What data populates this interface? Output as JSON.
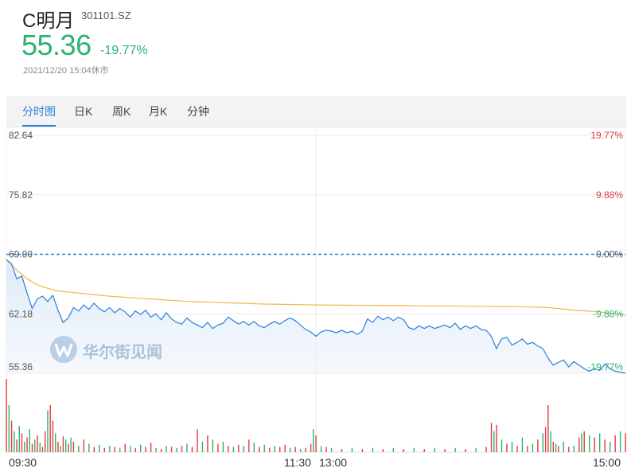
{
  "header": {
    "name": "C明月",
    "code": "301101.SZ",
    "price": "55.36",
    "change": "-19.77%",
    "timestamp": "2021/12/20 15:04休市"
  },
  "tabs": [
    {
      "label": "分时图",
      "active": true
    },
    {
      "label": "日K",
      "active": false
    },
    {
      "label": "周K",
      "active": false
    },
    {
      "label": "月K",
      "active": false
    },
    {
      "label": "分钟",
      "active": false
    }
  ],
  "watermark": "华尔街见闻",
  "colors": {
    "up": "#e23b3b",
    "down": "#2bb371",
    "price_line": "#2a7fdb",
    "avg_line": "#f2b84b",
    "prev_close_line": "#2a7fdb"
  },
  "chart_data": {
    "type": "line",
    "y_labels_left": [
      "82.64",
      "75.82",
      "69.00",
      "62.18",
      "55.36"
    ],
    "y_labels_right": [
      "19.77%",
      "9.88%",
      "0.00%",
      "-9.88%",
      "-19.77%"
    ],
    "x_labels": [
      "09:30",
      "11:30",
      "13:00",
      "15:00"
    ],
    "ylim": [
      55.36,
      82.64
    ],
    "prev_close": 69.0,
    "x_unit": "minutes since 09:30 (240 total)",
    "series": [
      {
        "name": "price",
        "points": [
          [
            0,
            68.4
          ],
          [
            2,
            67.9
          ],
          [
            4,
            66.2
          ],
          [
            6,
            66.5
          ],
          [
            8,
            64.6
          ],
          [
            10,
            62.8
          ],
          [
            12,
            63.9
          ],
          [
            14,
            64.2
          ],
          [
            16,
            63.6
          ],
          [
            18,
            64.3
          ],
          [
            20,
            62.6
          ],
          [
            22,
            61.2
          ],
          [
            24,
            61.7
          ],
          [
            26,
            62.9
          ],
          [
            28,
            62.5
          ],
          [
            30,
            63.2
          ],
          [
            32,
            62.7
          ],
          [
            34,
            63.4
          ],
          [
            36,
            62.8
          ],
          [
            38,
            62.4
          ],
          [
            40,
            62.9
          ],
          [
            42,
            62.3
          ],
          [
            44,
            62.8
          ],
          [
            46,
            62.4
          ],
          [
            48,
            61.8
          ],
          [
            50,
            62.5
          ],
          [
            52,
            62.1
          ],
          [
            54,
            62.6
          ],
          [
            56,
            61.8
          ],
          [
            58,
            62.2
          ],
          [
            60,
            61.5
          ],
          [
            62,
            62.3
          ],
          [
            64,
            61.6
          ],
          [
            66,
            61.2
          ],
          [
            68,
            61.0
          ],
          [
            70,
            61.7
          ],
          [
            72,
            61.2
          ],
          [
            74,
            60.9
          ],
          [
            76,
            60.6
          ],
          [
            78,
            61.2
          ],
          [
            80,
            60.5
          ],
          [
            82,
            60.9
          ],
          [
            84,
            61.1
          ],
          [
            86,
            61.8
          ],
          [
            88,
            61.4
          ],
          [
            90,
            61.0
          ],
          [
            92,
            61.3
          ],
          [
            94,
            60.9
          ],
          [
            96,
            61.3
          ],
          [
            98,
            60.8
          ],
          [
            100,
            60.6
          ],
          [
            102,
            61.0
          ],
          [
            104,
            61.3
          ],
          [
            106,
            61.0
          ],
          [
            108,
            61.4
          ],
          [
            110,
            61.7
          ],
          [
            112,
            61.4
          ],
          [
            114,
            60.9
          ],
          [
            116,
            60.4
          ],
          [
            118,
            60.1
          ],
          [
            120,
            59.6
          ],
          [
            122,
            60.1
          ],
          [
            124,
            60.3
          ],
          [
            126,
            60.2
          ],
          [
            128,
            60.0
          ],
          [
            130,
            60.3
          ],
          [
            132,
            60.0
          ],
          [
            134,
            60.2
          ],
          [
            136,
            59.8
          ],
          [
            138,
            60.2
          ],
          [
            140,
            61.6
          ],
          [
            142,
            61.2
          ],
          [
            144,
            61.9
          ],
          [
            146,
            61.5
          ],
          [
            148,
            61.8
          ],
          [
            150,
            61.4
          ],
          [
            152,
            61.8
          ],
          [
            154,
            61.5
          ],
          [
            156,
            60.6
          ],
          [
            158,
            60.4
          ],
          [
            160,
            60.8
          ],
          [
            162,
            60.5
          ],
          [
            164,
            60.8
          ],
          [
            166,
            60.5
          ],
          [
            168,
            60.7
          ],
          [
            170,
            60.9
          ],
          [
            172,
            60.6
          ],
          [
            174,
            61.1
          ],
          [
            176,
            60.4
          ],
          [
            178,
            60.8
          ],
          [
            180,
            60.5
          ],
          [
            182,
            60.8
          ],
          [
            184,
            60.4
          ],
          [
            186,
            60.3
          ],
          [
            188,
            59.6
          ],
          [
            190,
            58.2
          ],
          [
            192,
            59.3
          ],
          [
            194,
            59.5
          ],
          [
            196,
            58.6
          ],
          [
            198,
            58.9
          ],
          [
            200,
            59.3
          ],
          [
            202,
            58.7
          ],
          [
            204,
            58.9
          ],
          [
            206,
            58.5
          ],
          [
            208,
            58.2
          ],
          [
            210,
            57.1
          ],
          [
            212,
            56.3
          ],
          [
            214,
            56.6
          ],
          [
            216,
            56.9
          ],
          [
            218,
            56.1
          ],
          [
            220,
            56.7
          ],
          [
            222,
            56.3
          ],
          [
            224,
            55.9
          ],
          [
            226,
            55.6
          ],
          [
            228,
            55.9
          ],
          [
            230,
            55.7
          ],
          [
            232,
            56.4
          ],
          [
            234,
            55.9
          ],
          [
            236,
            55.6
          ],
          [
            238,
            55.5
          ],
          [
            240,
            55.4
          ]
        ]
      },
      {
        "name": "avg",
        "points": [
          [
            0,
            68.4
          ],
          [
            4,
            67.2
          ],
          [
            8,
            66.2
          ],
          [
            12,
            65.5
          ],
          [
            16,
            65.1
          ],
          [
            20,
            64.8
          ],
          [
            30,
            64.5
          ],
          [
            40,
            64.2
          ],
          [
            50,
            64.0
          ],
          [
            60,
            63.8
          ],
          [
            70,
            63.6
          ],
          [
            80,
            63.5
          ],
          [
            90,
            63.4
          ],
          [
            100,
            63.3
          ],
          [
            110,
            63.25
          ],
          [
            120,
            63.2
          ],
          [
            140,
            63.15
          ],
          [
            160,
            63.1
          ],
          [
            180,
            63.05
          ],
          [
            200,
            63.0
          ],
          [
            210,
            62.9
          ],
          [
            220,
            62.6
          ],
          [
            230,
            62.4
          ],
          [
            240,
            62.0
          ]
        ]
      }
    ],
    "volume": [
      [
        0,
        70,
        "up"
      ],
      [
        1,
        45,
        "down"
      ],
      [
        2,
        30,
        "up"
      ],
      [
        3,
        20,
        "down"
      ],
      [
        4,
        12,
        "up"
      ],
      [
        5,
        25,
        "down"
      ],
      [
        6,
        18,
        "up"
      ],
      [
        7,
        10,
        "down"
      ],
      [
        8,
        14,
        "up"
      ],
      [
        9,
        22,
        "down"
      ],
      [
        10,
        8,
        "up"
      ],
      [
        11,
        12,
        "down"
      ],
      [
        12,
        16,
        "up"
      ],
      [
        13,
        9,
        "down"
      ],
      [
        14,
        5,
        "up"
      ],
      [
        15,
        20,
        "up"
      ],
      [
        16,
        40,
        "down"
      ],
      [
        17,
        45,
        "up"
      ],
      [
        18,
        30,
        "up"
      ],
      [
        19,
        18,
        "down"
      ],
      [
        20,
        10,
        "up"
      ],
      [
        21,
        6,
        "down"
      ],
      [
        22,
        15,
        "up"
      ],
      [
        23,
        12,
        "down"
      ],
      [
        24,
        8,
        "up"
      ],
      [
        25,
        14,
        "down"
      ],
      [
        26,
        10,
        "up"
      ],
      [
        28,
        6,
        "down"
      ],
      [
        30,
        12,
        "up"
      ],
      [
        32,
        8,
        "down"
      ],
      [
        34,
        5,
        "up"
      ],
      [
        36,
        7,
        "down"
      ],
      [
        38,
        4,
        "up"
      ],
      [
        40,
        6,
        "down"
      ],
      [
        42,
        5,
        "up"
      ],
      [
        44,
        4,
        "down"
      ],
      [
        46,
        8,
        "up"
      ],
      [
        48,
        6,
        "down"
      ],
      [
        50,
        4,
        "up"
      ],
      [
        52,
        7,
        "down"
      ],
      [
        54,
        5,
        "up"
      ],
      [
        56,
        9,
        "up"
      ],
      [
        58,
        4,
        "down"
      ],
      [
        60,
        3,
        "up"
      ],
      [
        62,
        6,
        "down"
      ],
      [
        64,
        5,
        "up"
      ],
      [
        66,
        4,
        "down"
      ],
      [
        68,
        6,
        "up"
      ],
      [
        70,
        8,
        "down"
      ],
      [
        72,
        5,
        "up"
      ],
      [
        74,
        22,
        "up"
      ],
      [
        76,
        10,
        "down"
      ],
      [
        78,
        16,
        "up"
      ],
      [
        80,
        12,
        "down"
      ],
      [
        82,
        8,
        "up"
      ],
      [
        84,
        10,
        "down"
      ],
      [
        86,
        6,
        "up"
      ],
      [
        88,
        5,
        "down"
      ],
      [
        90,
        7,
        "up"
      ],
      [
        92,
        6,
        "down"
      ],
      [
        94,
        12,
        "up"
      ],
      [
        96,
        9,
        "down"
      ],
      [
        98,
        5,
        "up"
      ],
      [
        100,
        7,
        "down"
      ],
      [
        102,
        4,
        "up"
      ],
      [
        104,
        6,
        "down"
      ],
      [
        106,
        5,
        "up"
      ],
      [
        108,
        7,
        "up"
      ],
      [
        110,
        4,
        "down"
      ],
      [
        112,
        5,
        "up"
      ],
      [
        114,
        3,
        "down"
      ],
      [
        116,
        4,
        "up"
      ],
      [
        118,
        8,
        "up"
      ],
      [
        119,
        22,
        "down"
      ],
      [
        120,
        16,
        "up"
      ],
      [
        122,
        6,
        "down"
      ],
      [
        124,
        5,
        "up"
      ],
      [
        126,
        4,
        "down"
      ],
      [
        130,
        3,
        "up"
      ],
      [
        134,
        4,
        "down"
      ],
      [
        138,
        3,
        "up"
      ],
      [
        142,
        4,
        "down"
      ],
      [
        146,
        3,
        "up"
      ],
      [
        150,
        4,
        "down"
      ],
      [
        154,
        3,
        "up"
      ],
      [
        158,
        4,
        "down"
      ],
      [
        162,
        3,
        "up"
      ],
      [
        166,
        4,
        "down"
      ],
      [
        170,
        3,
        "up"
      ],
      [
        174,
        4,
        "down"
      ],
      [
        178,
        3,
        "up"
      ],
      [
        182,
        4,
        "down"
      ],
      [
        186,
        5,
        "up"
      ],
      [
        188,
        28,
        "up"
      ],
      [
        189,
        20,
        "down"
      ],
      [
        190,
        26,
        "up"
      ],
      [
        192,
        12,
        "down"
      ],
      [
        194,
        8,
        "up"
      ],
      [
        196,
        10,
        "down"
      ],
      [
        198,
        6,
        "up"
      ],
      [
        200,
        14,
        "down"
      ],
      [
        202,
        6,
        "up"
      ],
      [
        204,
        8,
        "down"
      ],
      [
        206,
        12,
        "up"
      ],
      [
        208,
        18,
        "down"
      ],
      [
        209,
        24,
        "up"
      ],
      [
        210,
        45,
        "up"
      ],
      [
        211,
        20,
        "down"
      ],
      [
        212,
        10,
        "up"
      ],
      [
        213,
        8,
        "down"
      ],
      [
        214,
        6,
        "up"
      ],
      [
        216,
        10,
        "down"
      ],
      [
        218,
        5,
        "up"
      ],
      [
        220,
        6,
        "down"
      ],
      [
        222,
        14,
        "up"
      ],
      [
        223,
        18,
        "down"
      ],
      [
        224,
        20,
        "up"
      ],
      [
        226,
        16,
        "down"
      ],
      [
        228,
        14,
        "up"
      ],
      [
        230,
        18,
        "down"
      ],
      [
        232,
        12,
        "up"
      ],
      [
        234,
        10,
        "down"
      ],
      [
        236,
        16,
        "up"
      ],
      [
        238,
        20,
        "down"
      ],
      [
        240,
        18,
        "up"
      ]
    ]
  }
}
